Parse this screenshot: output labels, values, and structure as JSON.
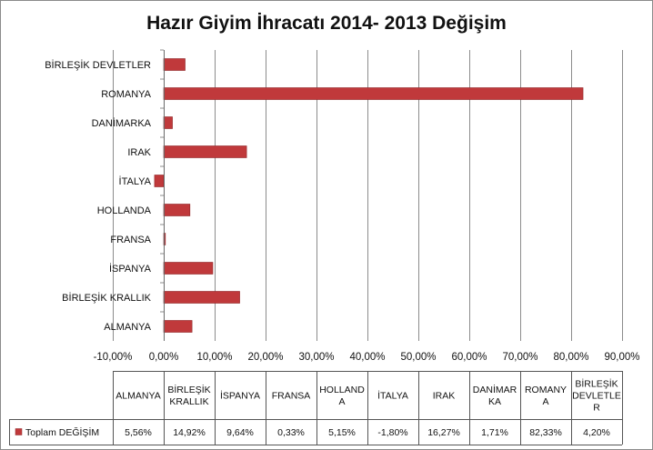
{
  "chart_data": {
    "type": "bar",
    "orientation": "horizontal",
    "title": "Hazır Giyim İhracatı 2014- 2013 Değişim",
    "categories": [
      "ALMANYA",
      "BİRLEŞİK KRALLIK",
      "İSPANYA",
      "FRANSA",
      "HOLLANDA",
      "İTALYA",
      "IRAK",
      "DANİMARKA",
      "ROMANYA",
      "BİRLEŞİK DEVLETLER"
    ],
    "category_labels_axis": [
      "ALMANYA",
      "BİRLEŞİK KRALLIK",
      "İSPANYA",
      "FRANSA",
      "HOLLANDA",
      "İTALYA",
      "IRAK",
      "DANİMARKA",
      "ROMANYA",
      "BİRLEŞİK DEVLETLER"
    ],
    "category_labels_table": [
      [
        "ALMANYA"
      ],
      [
        "BİRLEŞİK",
        "KRALLIK"
      ],
      [
        "İSPANYA"
      ],
      [
        "FRANSA"
      ],
      [
        "HOLLAND",
        "A"
      ],
      [
        "İTALYA"
      ],
      [
        "IRAK"
      ],
      [
        "DANİMAR",
        "KA"
      ],
      [
        "ROMANY",
        "A"
      ],
      [
        "BİRLEŞİK",
        "DEVLETLE",
        "R"
      ]
    ],
    "series": [
      {
        "name": "Toplam DEĞİŞİM",
        "values": [
          5.56,
          14.92,
          9.64,
          0.33,
          5.15,
          -1.8,
          16.27,
          1.71,
          82.33,
          4.2
        ],
        "value_labels": [
          "5,56%",
          "14,92%",
          "9,64%",
          "0,33%",
          "5,15%",
          "-1,80%",
          "16,27%",
          "1,71%",
          "82,33%",
          "4,20%"
        ],
        "color": "#c0393b"
      }
    ],
    "xlim": [
      -10,
      90
    ],
    "xticks": [
      -10,
      0,
      10,
      20,
      30,
      40,
      50,
      60,
      70,
      80,
      90
    ],
    "xtick_labels": [
      "-10,00%",
      "0,00%",
      "10,00%",
      "20,00%",
      "30,00%",
      "40,00%",
      "50,00%",
      "60,00%",
      "70,00%",
      "80,00%",
      "90,00%"
    ],
    "grid": true,
    "legend": "data-table",
    "xlabel": "",
    "ylabel": ""
  },
  "colors": {
    "bar": "#c0393b",
    "bar_edge": "#8e2426",
    "grid": "#8c8c8c",
    "border": "#8a8a8a"
  }
}
